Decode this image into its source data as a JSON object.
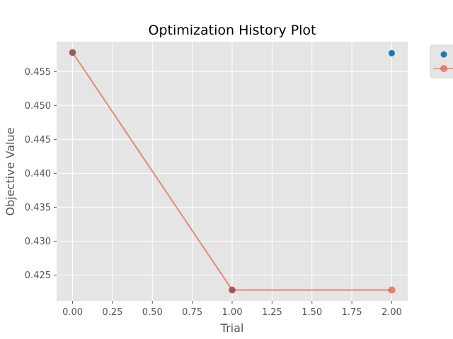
{
  "chart_data": {
    "type": "scatter",
    "title": "Optimization History Plot",
    "xlabel": "Trial",
    "ylabel": "Objective Value",
    "xlim": [
      -0.1,
      2.1
    ],
    "ylim": [
      0.4212,
      0.4594
    ],
    "xticks": [
      0.0,
      0.25,
      0.5,
      0.75,
      1.0,
      1.25,
      1.5,
      1.75,
      2.0
    ],
    "xtick_labels": [
      "0.00",
      "0.25",
      "0.50",
      "0.75",
      "1.00",
      "1.25",
      "1.50",
      "1.75",
      "2.00"
    ],
    "yticks": [
      0.425,
      0.43,
      0.435,
      0.44,
      0.445,
      0.45,
      0.455
    ],
    "ytick_labels": [
      "0.425",
      "0.430",
      "0.435",
      "0.440",
      "0.445",
      "0.450",
      "0.455"
    ],
    "grid": true,
    "legend": "outside top-right (clipped)",
    "series": [
      {
        "type": "scatter",
        "color": "#1f77b4",
        "x": [
          0,
          1,
          2
        ],
        "y": [
          0.4578,
          0.4228,
          0.4577
        ]
      },
      {
        "type": "line",
        "color": "#e24a33",
        "x": [
          0,
          1,
          2
        ],
        "y": [
          0.4578,
          0.4228,
          0.4228
        ]
      }
    ],
    "colors": {
      "plot_background": "#e5e5e5",
      "grid": "#ffffff",
      "text": "#555555"
    }
  }
}
